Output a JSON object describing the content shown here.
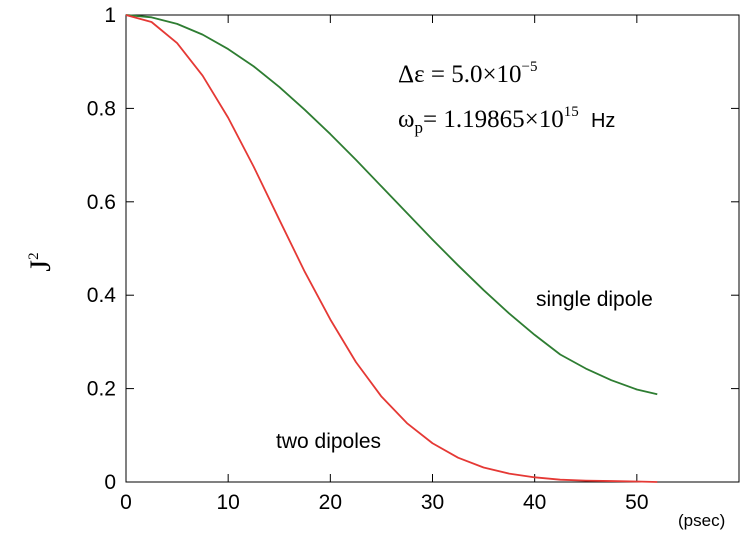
{
  "chart_data": {
    "type": "line",
    "title": "",
    "xlabel": "(psec)",
    "ylabel": "J",
    "ylabel_sup": "2",
    "xlim": [
      0,
      60
    ],
    "ylim": [
      0,
      1
    ],
    "xticks": [
      "0",
      "10",
      "20",
      "30",
      "40",
      "50"
    ],
    "yticks": [
      "0",
      "0.2",
      "0.4",
      "0.6",
      "0.8",
      "1"
    ],
    "grid": false,
    "annotations": {
      "delta_eps_lhs": "Δε",
      "delta_eps_eq": "=",
      "delta_eps_value": "5.0",
      "delta_eps_times": "×",
      "delta_eps_base": "10",
      "delta_eps_exp": "−5",
      "omega_symbol": "ω",
      "omega_sub": "p",
      "omega_eq": "=",
      "omega_value": "1.19865",
      "omega_times": "×",
      "omega_base": "10",
      "omega_exp": "15",
      "omega_unit": "Hz"
    },
    "series": [
      {
        "name": "single dipole",
        "color": "#2e7d32",
        "x": [
          0,
          2.5,
          5,
          7.5,
          10,
          12.5,
          15,
          17.5,
          20,
          22.5,
          25,
          27.5,
          30,
          32.5,
          35,
          37.5,
          40,
          42.5,
          45,
          47.5,
          50,
          52
        ],
        "values": [
          1.0,
          0.995,
          0.981,
          0.958,
          0.927,
          0.89,
          0.846,
          0.797,
          0.745,
          0.69,
          0.633,
          0.576,
          0.519,
          0.464,
          0.411,
          0.361,
          0.315,
          0.273,
          0.243,
          0.218,
          0.198,
          0.188
        ]
      },
      {
        "name": "two dipoles",
        "color": "#e53935",
        "x": [
          0,
          2.5,
          5,
          7.5,
          10,
          12.5,
          15,
          17.5,
          20,
          22.5,
          25,
          27.5,
          30,
          32.5,
          35,
          37.5,
          40,
          42.5,
          45,
          47.5,
          50,
          52
        ],
        "values": [
          1.0,
          0.985,
          0.94,
          0.87,
          0.78,
          0.675,
          0.562,
          0.45,
          0.348,
          0.257,
          0.183,
          0.126,
          0.083,
          0.052,
          0.031,
          0.018,
          0.01,
          0.005,
          0.003,
          0.002,
          0.001,
          0.0
        ]
      }
    ]
  }
}
